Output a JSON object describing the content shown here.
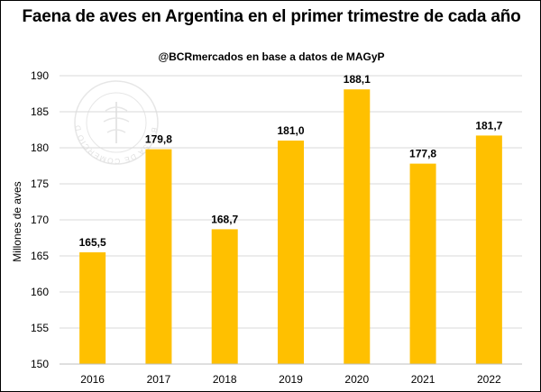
{
  "chart_data": {
    "type": "bar",
    "title": "Faena de aves en Argentina en el primer trimestre de cada año",
    "subtitle": "@BCRmercados en base a datos de MAGyP",
    "xlabel": "",
    "ylabel": "Millones de aves",
    "categories": [
      "2016",
      "2017",
      "2018",
      "2019",
      "2020",
      "2021",
      "2022"
    ],
    "values": [
      165.5,
      179.8,
      168.7,
      181.0,
      188.1,
      177.8,
      181.7
    ],
    "value_labels": [
      "165,5",
      "179,8",
      "168,7",
      "181,0",
      "188,1",
      "177,8",
      "181,7"
    ],
    "ylim": [
      150,
      190
    ],
    "yticks": [
      150,
      155,
      160,
      165,
      170,
      175,
      180,
      185,
      190
    ],
    "grid": true,
    "legend": "none",
    "bar_color": "#ffc000",
    "watermark_text": "BOLSA DE COMERCIO DE ROSARIO"
  }
}
